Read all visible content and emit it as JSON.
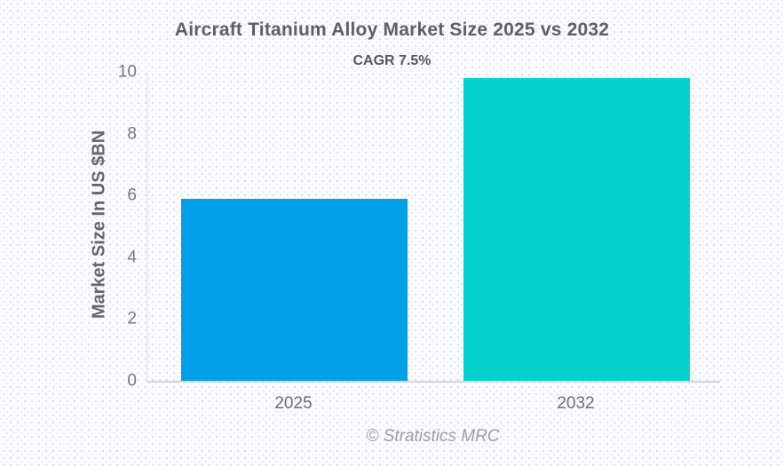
{
  "chart_data": {
    "type": "bar",
    "title": "Aircraft Titanium Alloy Market Size 2025 vs 2032",
    "subtitle": "CAGR 7.5%",
    "ylabel": "Market Size In US $BN",
    "xlabel": "",
    "categories": [
      "2025",
      "2032"
    ],
    "values": [
      5.9,
      9.8
    ],
    "ylim": [
      0,
      10
    ],
    "yticks": [
      0,
      2,
      4,
      6,
      8,
      10
    ],
    "bar_colors": [
      "#029FE9",
      "#04D2CE"
    ],
    "grid": "off",
    "legend": "none",
    "footer": "© Stratistics MRC"
  },
  "colors": {
    "bar_2025": "#029FE9",
    "bar_2032": "#04D2CE",
    "title_text": "#606060",
    "tick_text": "#7a7a7a",
    "axis_line": "#d6d6d6",
    "footer_text": "#9e9e9e",
    "background": "#fafbfc"
  }
}
